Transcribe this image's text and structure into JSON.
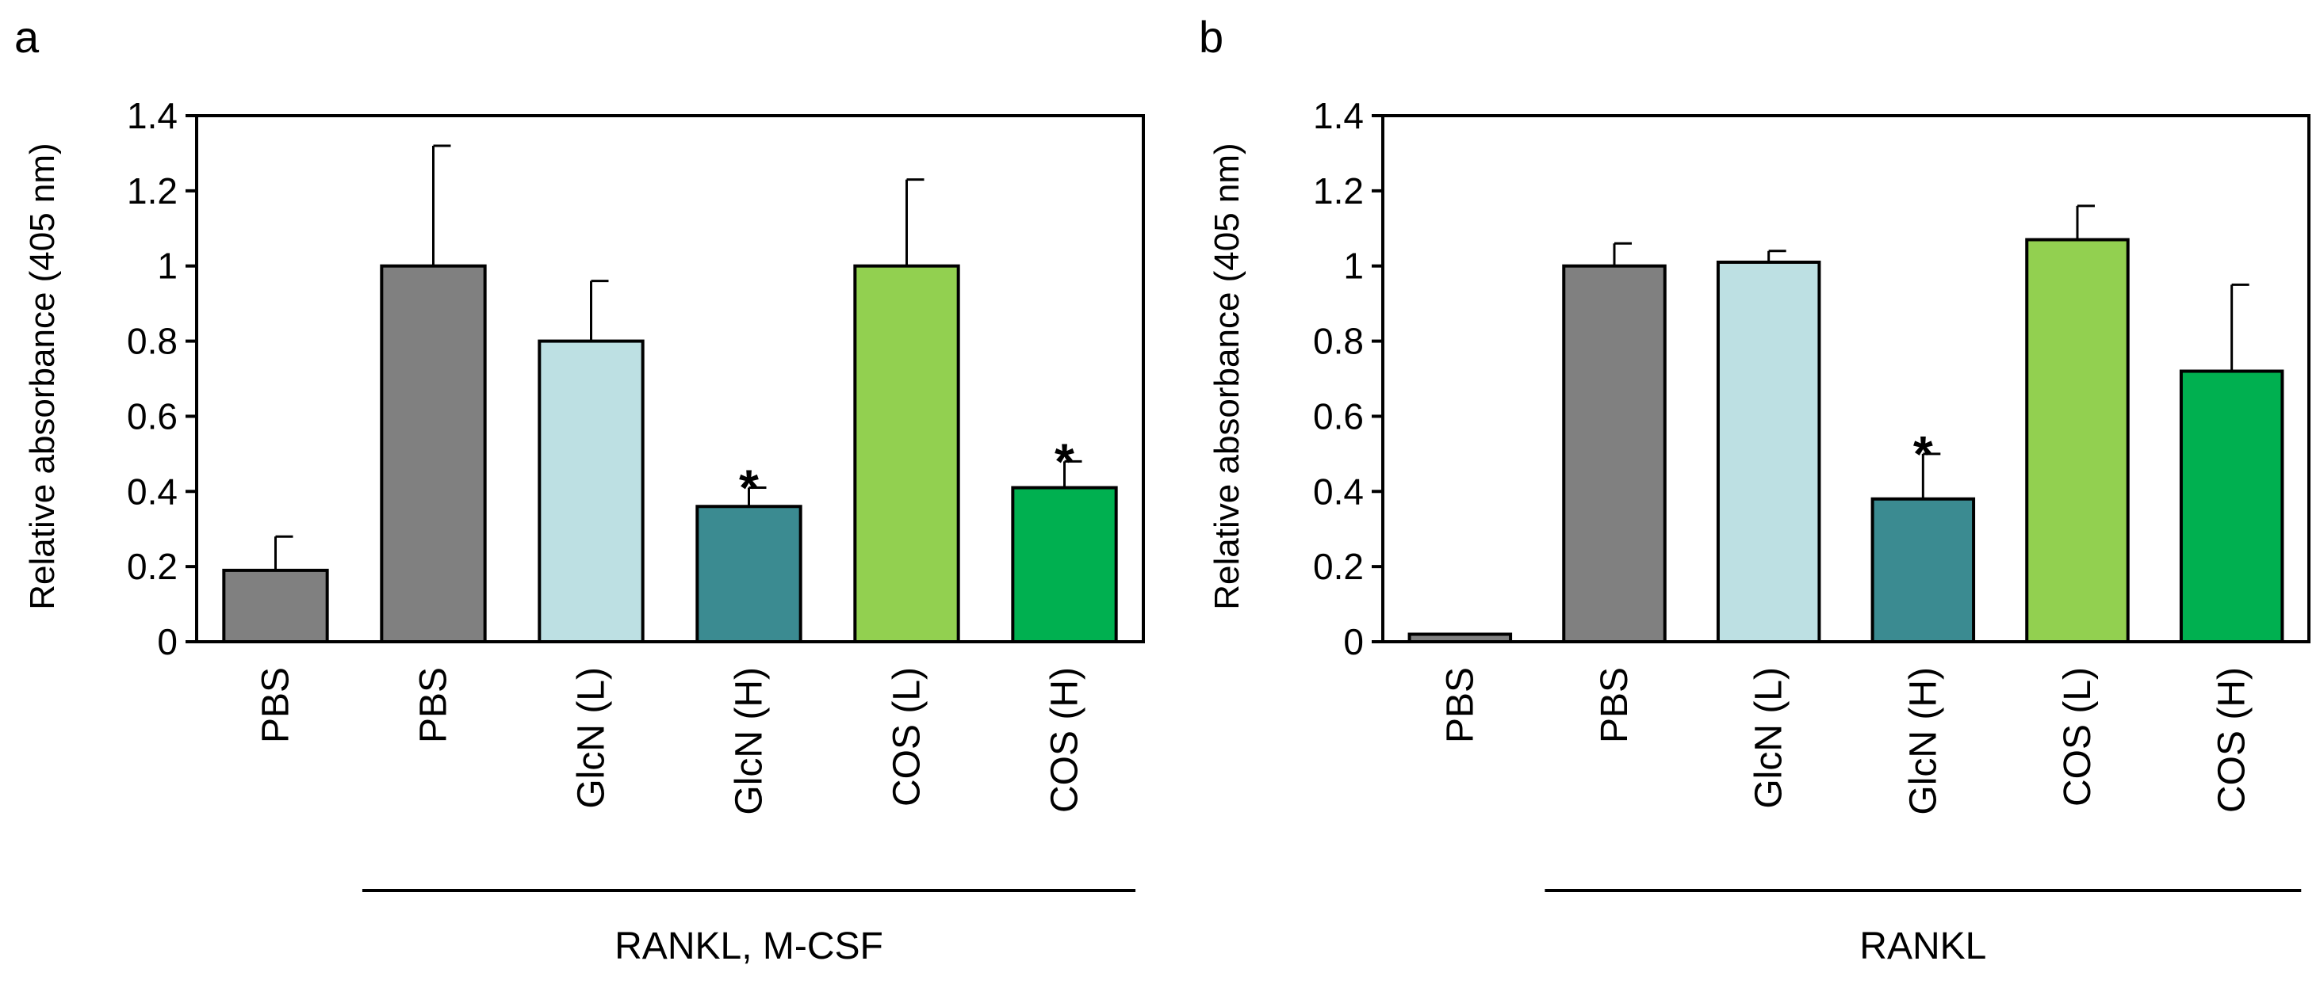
{
  "chart_data": [
    {
      "panel": "a",
      "type": "bar",
      "ylabel": "Relative absorbance (405 nm)",
      "ylim": [
        0,
        1.4
      ],
      "yticks": [
        0,
        0.2,
        0.4,
        0.6,
        0.8,
        1,
        1.2,
        1.4
      ],
      "ytick_labels": [
        "0",
        "0.2",
        "0.4",
        "0.6",
        "0.8",
        "1",
        "1.2",
        "1.4"
      ],
      "categories": [
        "PBS",
        "PBS",
        "GlcN (L)",
        "GlcN (H)",
        "COS (L)",
        "COS (H)"
      ],
      "values": [
        0.19,
        1.0,
        0.8,
        0.36,
        1.0,
        0.41
      ],
      "errors": [
        0.09,
        0.32,
        0.16,
        0.05,
        0.23,
        0.07
      ],
      "colors": [
        "#808080",
        "#808080",
        "#bde0e3",
        "#3b8b91",
        "#92d050",
        "#00b050"
      ],
      "significance": [
        "",
        "",
        "",
        "*",
        "",
        "*"
      ],
      "group_label": "RANKL, M-CSF",
      "group_start_index": 1
    },
    {
      "panel": "b",
      "type": "bar",
      "ylabel": "Relative absorbance (405 nm)",
      "ylim": [
        0,
        1.4
      ],
      "yticks": [
        0,
        0.2,
        0.4,
        0.6,
        0.8,
        1,
        1.2,
        1.4
      ],
      "ytick_labels": [
        "0",
        "0.2",
        "0.4",
        "0.6",
        "0.8",
        "1",
        "1.2",
        "1.4"
      ],
      "categories": [
        "PBS",
        "PBS",
        "GlcN (L)",
        "GlcN (H)",
        "COS (L)",
        "COS (H)"
      ],
      "values": [
        0.02,
        1.0,
        1.01,
        0.38,
        1.07,
        0.72
      ],
      "errors": [
        0.0,
        0.06,
        0.03,
        0.12,
        0.09,
        0.23
      ],
      "colors": [
        "#808080",
        "#808080",
        "#bde0e3",
        "#3b8b91",
        "#92d050",
        "#00b050"
      ],
      "significance": [
        "",
        "",
        "",
        "*",
        "",
        ""
      ],
      "group_label": "RANKL",
      "group_start_index": 1
    }
  ]
}
